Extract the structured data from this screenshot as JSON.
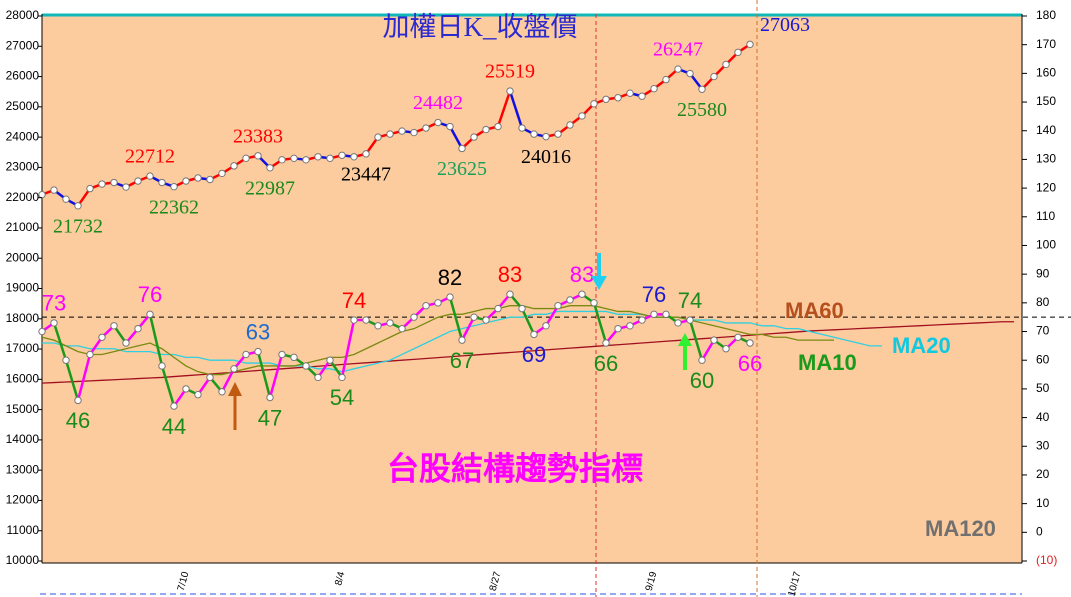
{
  "chart_data": {
    "type": "line",
    "categories": [
      null,
      null,
      null,
      null,
      null,
      null,
      null,
      null,
      null,
      null,
      null,
      null,
      "7/10",
      null,
      null,
      null,
      null,
      null,
      null,
      null,
      null,
      null,
      null,
      null,
      null,
      "8/4",
      null,
      null,
      null,
      null,
      null,
      null,
      null,
      null,
      null,
      null,
      null,
      null,
      "8/27",
      null,
      null,
      null,
      null,
      null,
      null,
      null,
      null,
      null,
      null,
      null,
      null,
      "9/19",
      null,
      null,
      null,
      null,
      null,
      null,
      null,
      null,
      null,
      null,
      null,
      "10/17",
      null,
      null,
      null,
      null,
      null,
      null,
      null,
      null,
      null,
      null,
      null,
      null,
      null,
      null,
      null,
      null,
      null,
      null
    ],
    "ylim": [
      10000,
      28000
    ],
    "yticks": [
      10000,
      11000,
      12000,
      13000,
      14000,
      15000,
      16000,
      17000,
      18000,
      19000,
      20000,
      21000,
      22000,
      23000,
      24000,
      25000,
      26000,
      27000,
      28000
    ],
    "y2lim": [
      -10,
      180
    ],
    "y2ticks": [
      {
        "value": -10,
        "label": "(10)"
      },
      0,
      10,
      20,
      30,
      40,
      50,
      60,
      70,
      80,
      90,
      100,
      110,
      120,
      130,
      140,
      150,
      160,
      170,
      180
    ],
    "y2_hline": 75,
    "series": [
      {
        "name": "加權日K_收盤價",
        "name_color": "#2a2ad0",
        "up_color": "#ff0000",
        "down_color": "#1010e0",
        "values": [
          22100,
          22250,
          21950,
          21732,
          22300,
          22450,
          22500,
          22350,
          22550,
          22712,
          22500,
          22362,
          22550,
          22650,
          22600,
          22800,
          23050,
          23300,
          23383,
          22987,
          23250,
          23300,
          23250,
          23350,
          23300,
          23400,
          23350,
          23447,
          24000,
          24100,
          24200,
          24150,
          24300,
          24482,
          24350,
          23625,
          24000,
          24250,
          24350,
          25519,
          24300,
          24100,
          24016,
          24100,
          24400,
          24700,
          25100,
          25250,
          25300,
          25450,
          25350,
          25600,
          25900,
          26247,
          26100,
          25580,
          26000,
          26400,
          26800,
          27063,
          null,
          null,
          null,
          null,
          null,
          null,
          null,
          null,
          null,
          null,
          null,
          null,
          null,
          null,
          null,
          null,
          null,
          null,
          null,
          null,
          null,
          null
        ],
        "value_labels": [
          null,
          null,
          null,
          "21732",
          null,
          null,
          null,
          null,
          null,
          "22712",
          null,
          "22362",
          null,
          null,
          null,
          null,
          null,
          null,
          "23383",
          "22987",
          null,
          null,
          null,
          null,
          null,
          null,
          null,
          "23447",
          null,
          null,
          null,
          null,
          null,
          "24482",
          null,
          "23625",
          null,
          null,
          null,
          "25519",
          null,
          null,
          "24016",
          null,
          null,
          null,
          null,
          null,
          null,
          null,
          null,
          null,
          null,
          "26247",
          null,
          "25580",
          null,
          null,
          null,
          "27063",
          null,
          null,
          null,
          null,
          null,
          null,
          null,
          null,
          null,
          null,
          null,
          null,
          null,
          null,
          null,
          null,
          null,
          null,
          null,
          null,
          null,
          null
        ],
        "label_colors": [
          null,
          null,
          null,
          "#1a8a1a",
          null,
          null,
          null,
          null,
          null,
          "#ff0000",
          null,
          "#1a8a1a",
          null,
          null,
          null,
          null,
          null,
          null,
          "#ff0000",
          "#1a8a1a",
          null,
          null,
          null,
          null,
          null,
          null,
          null,
          "#000000",
          null,
          null,
          null,
          null,
          null,
          "#ff00ff",
          null,
          "#1aa05a",
          null,
          null,
          null,
          "#ff0000",
          null,
          null,
          "#000000",
          null,
          null,
          null,
          null,
          null,
          null,
          null,
          null,
          null,
          null,
          "#ff00ff",
          null,
          "#1a8a1a",
          null,
          null,
          null,
          "#1a1ad0",
          null,
          null,
          null,
          null,
          null,
          null,
          null,
          null,
          null,
          null,
          null,
          null,
          null,
          null,
          null,
          null,
          null,
          null,
          null,
          null,
          null,
          null
        ]
      },
      {
        "name": "台股結構趨勢指標",
        "name_color": "#ff00ff",
        "axis": "y2",
        "up_color": "#ff00ff",
        "down_color": "#1a9a1a",
        "values": [
          70,
          73,
          60,
          46,
          62,
          68,
          72,
          66,
          71,
          76,
          58,
          44,
          50,
          48,
          54,
          49,
          57,
          62,
          63,
          47,
          62,
          61,
          58,
          54,
          60,
          54,
          74,
          74,
          72,
          73,
          71,
          75,
          79,
          80,
          82,
          67,
          75,
          74,
          78,
          83,
          78,
          69,
          72,
          79,
          81,
          83,
          80,
          66,
          71,
          72,
          74,
          76,
          76,
          73,
          74,
          60,
          67,
          64,
          68,
          66,
          null,
          null,
          null,
          null,
          null,
          null,
          null,
          null,
          null,
          null,
          null,
          null,
          null,
          null,
          null,
          null,
          null,
          null,
          null,
          null,
          null,
          null
        ],
        "value_labels": [
          null,
          "73",
          null,
          "46",
          null,
          null,
          null,
          null,
          null,
          "76",
          null,
          "44",
          null,
          null,
          null,
          null,
          null,
          null,
          "63",
          "47",
          null,
          null,
          null,
          null,
          null,
          "54",
          "74",
          null,
          null,
          null,
          null,
          null,
          null,
          null,
          "82",
          "67",
          null,
          null,
          null,
          "83",
          null,
          "69",
          null,
          null,
          null,
          "83",
          null,
          "66",
          null,
          null,
          null,
          "76",
          null,
          null,
          "74",
          "60",
          null,
          null,
          null,
          "66",
          null,
          null,
          null,
          null,
          null,
          null,
          null,
          null,
          null,
          null,
          null,
          null,
          null,
          null,
          null,
          null,
          null,
          null,
          null,
          null,
          null,
          null
        ],
        "label_colors": [
          null,
          "#ff00ff",
          null,
          "#1a8a1a",
          null,
          null,
          null,
          null,
          null,
          "#ff00ff",
          null,
          "#1a8a1a",
          null,
          null,
          null,
          null,
          null,
          null,
          "#1a6ad0",
          "#1a8a1a",
          null,
          null,
          null,
          null,
          null,
          "#1a8a1a",
          "#ff0000",
          null,
          null,
          null,
          null,
          null,
          null,
          null,
          "#000000",
          "#1a8a1a",
          null,
          null,
          null,
          "#ff0000",
          null,
          "#1a1ad0",
          null,
          null,
          null,
          "#ff00ff",
          null,
          "#1a8a1a",
          null,
          null,
          null,
          "#1a1ad0",
          null,
          null,
          "#1a8a1a",
          "#1a8a1a",
          null,
          null,
          null,
          "#ff00ff",
          null,
          null,
          null,
          null,
          null,
          null,
          null,
          null,
          null,
          null,
          null,
          null,
          null,
          null,
          null,
          null,
          null,
          null,
          null,
          null,
          null,
          null
        ]
      },
      {
        "name": "MA60",
        "name_color": "#b5501e",
        "color": "#a01020",
        "axis": "y2",
        "values": [
          52,
          52.2,
          52.4,
          52.6,
          52.8,
          53,
          53.2,
          53.4,
          53.6,
          53.8,
          54,
          54.3,
          54.6,
          54.9,
          55.2,
          55.5,
          55.8,
          56.1,
          56.4,
          56.7,
          57,
          57.3,
          57.6,
          57.9,
          58.2,
          58.5,
          58.8,
          59.1,
          59.4,
          59.7,
          60,
          60.3,
          60.6,
          60.9,
          61.2,
          61.5,
          61.8,
          62.1,
          62.4,
          62.7,
          63,
          63.3,
          63.6,
          63.9,
          64.2,
          64.5,
          64.8,
          65.1,
          65.4,
          65.7,
          66,
          66.3,
          66.6,
          66.9,
          67.2,
          67.5,
          67.8,
          68.1,
          68.4,
          68.7,
          69,
          69.3,
          69.6,
          69.9,
          70.2,
          70.4,
          70.6,
          70.8,
          71,
          71.2,
          71.4,
          71.6,
          71.8,
          72,
          72.2,
          72.4,
          72.6,
          72.8,
          73,
          73.2,
          73.4,
          73.4
        ]
      },
      {
        "name": "MA20",
        "name_color": "#10c8e0",
        "color": "#30d0e0",
        "axis": "y2",
        "values": [
          66,
          66,
          65,
          65,
          64,
          64,
          64,
          63,
          63,
          63,
          62,
          62,
          61,
          61,
          60,
          60,
          60,
          59,
          59,
          59,
          58,
          58,
          58,
          57,
          57,
          56,
          57,
          58,
          59,
          60,
          62,
          64,
          66,
          68,
          70,
          71,
          72,
          73,
          74,
          75,
          75,
          76,
          76,
          77,
          77,
          77,
          77,
          77,
          76,
          76,
          76,
          75,
          75,
          75,
          74,
          74,
          74,
          73,
          73,
          73,
          72,
          72,
          71,
          71,
          70,
          69,
          68,
          67,
          66,
          65,
          65,
          null,
          null,
          null,
          null,
          null,
          null,
          null,
          null,
          null,
          null,
          null
        ]
      },
      {
        "name": "MA10",
        "name_color": "#1a9a1a",
        "color": "#7a8a10",
        "axis": "y2",
        "values": [
          68,
          67,
          65,
          63,
          62,
          62,
          63,
          64,
          65,
          66,
          64,
          61,
          58,
          56,
          55,
          55,
          56,
          57,
          58,
          58,
          58,
          58,
          59,
          60,
          61,
          61,
          62,
          64,
          66,
          68,
          70,
          71,
          73,
          75,
          76,
          76,
          77,
          78,
          78,
          79,
          79,
          78,
          78,
          78,
          79,
          79,
          79,
          78,
          77,
          77,
          76,
          75,
          75,
          75,
          74,
          73,
          72,
          71,
          70,
          69,
          69,
          68,
          68,
          67,
          67,
          67,
          67,
          null,
          null,
          null,
          null,
          null,
          null,
          null,
          null,
          null,
          null,
          null,
          null,
          null,
          null,
          null
        ]
      }
    ],
    "annotations": [
      {
        "text": "MA120",
        "color": "#707070"
      }
    ]
  }
}
